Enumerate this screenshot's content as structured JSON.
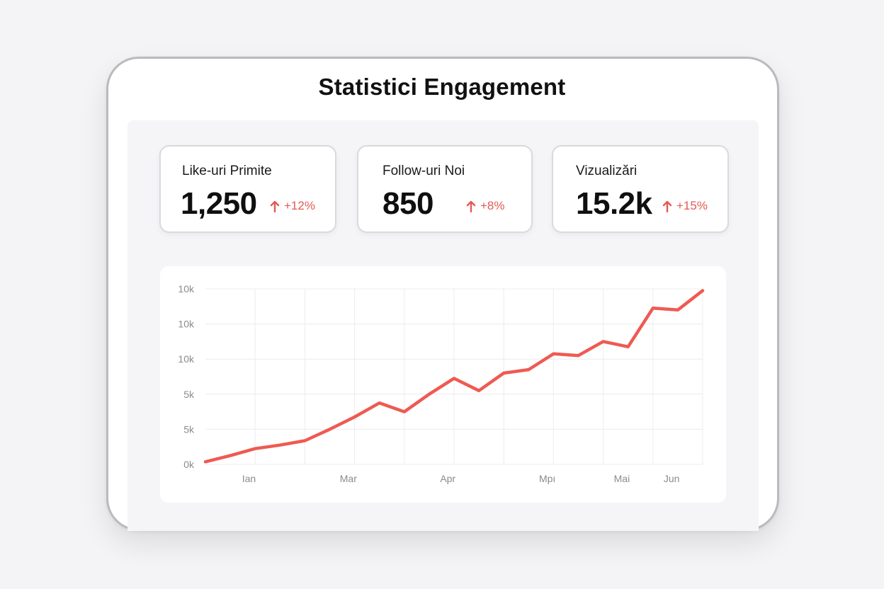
{
  "title": "Statistici Engagement",
  "colors": {
    "accent": "#ee5a52",
    "grid": "#ececef",
    "frame": "#b9babd"
  },
  "stats": [
    {
      "label": "Like-uri Primite",
      "value": "1,250",
      "delta": "+12%",
      "icon": "arrow-up-icon"
    },
    {
      "label": "Follow-uri Noi",
      "value": "850",
      "delta": "+8%",
      "icon": "arrow-up-icon"
    },
    {
      "label": "Vizualizări",
      "value": "15.2k",
      "delta": "+15%",
      "icon": "arrow-up-icon"
    }
  ],
  "chart_data": {
    "type": "line",
    "title": "",
    "xlabel": "",
    "ylabel": "",
    "y_tick_labels": [
      "10k",
      "10k",
      "10k",
      "5k",
      "5k",
      "0k"
    ],
    "x_tick_labels": [
      "Ian",
      "Mar",
      "Apr",
      "Мрı",
      "Mai",
      "Jun"
    ],
    "x_tick_index": [
      1.75,
      5.75,
      9.75,
      13.75,
      16.75,
      18.75
    ],
    "ylim": [
      0,
      10
    ],
    "grid": true,
    "series": [
      {
        "name": "Engagement",
        "x": [
          0,
          1,
          2,
          3,
          4,
          5,
          6,
          7,
          8,
          9,
          10,
          11,
          12,
          13,
          14,
          15,
          16,
          17,
          18,
          19,
          20
        ],
        "values": [
          0.15,
          0.5,
          0.9,
          1.1,
          1.35,
          2.0,
          2.7,
          3.5,
          3.0,
          4.0,
          4.9,
          4.2,
          5.2,
          5.4,
          6.3,
          6.2,
          7.0,
          6.7,
          8.9,
          8.8,
          9.9
        ]
      }
    ]
  }
}
